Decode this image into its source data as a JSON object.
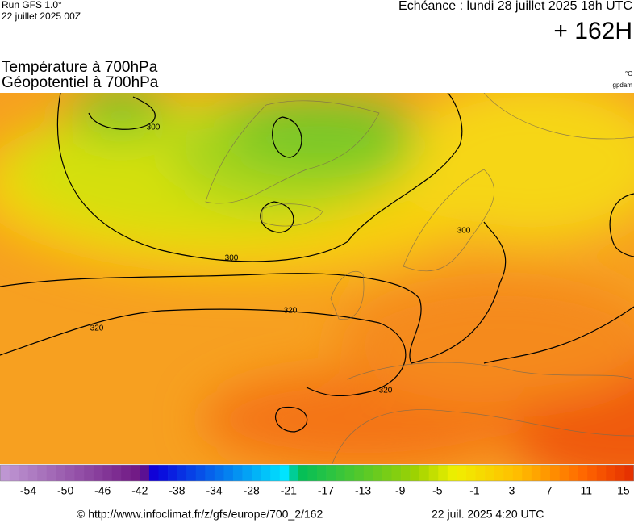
{
  "header": {
    "run": "Run GFS 1.0°",
    "run_date": "22 juillet 2025 00Z",
    "valid": "Echéance : lundi 28 juillet 2025 18h UTC",
    "lead": "+ 162H"
  },
  "titles": [
    "Température à 700hPa",
    "Géopotentiel à 700hPa"
  ],
  "units": [
    "°C",
    "gpdam"
  ],
  "contour_labels": [
    "300",
    "300",
    "300",
    "320",
    "320",
    "320"
  ],
  "colorbar": {
    "labels": [
      -54,
      -50,
      -46,
      -42,
      -38,
      -34,
      -28,
      -21,
      -17,
      -13,
      -9,
      -5,
      -1,
      3,
      7,
      11,
      15
    ]
  },
  "footer": {
    "source": "© http://www.infoclimat.fr/z/gfs/europe/700_2/162",
    "generated": "22 juil. 2025  4:20 UTC"
  }
}
